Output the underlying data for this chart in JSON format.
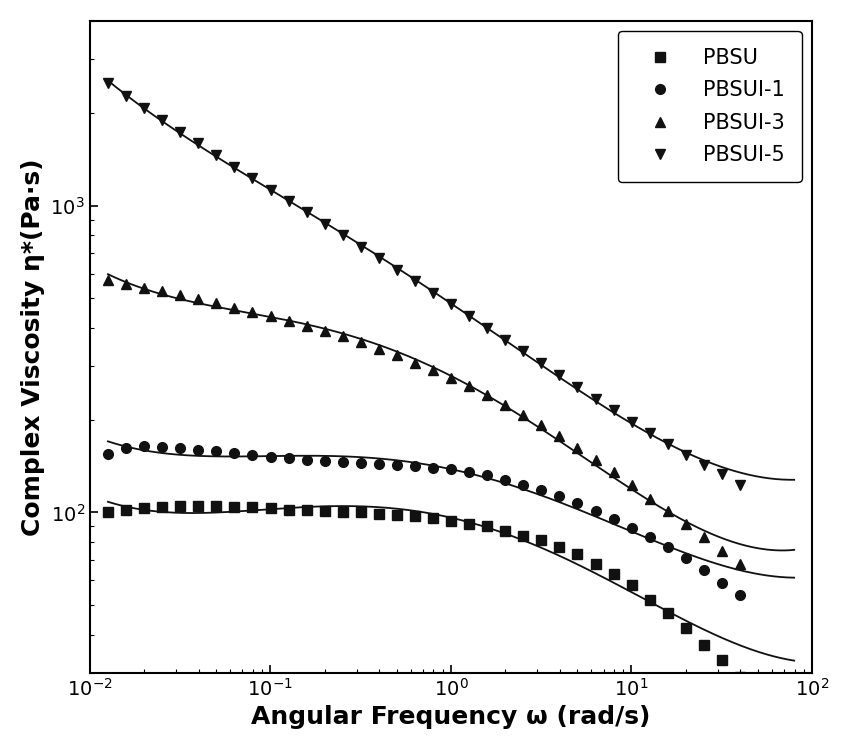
{
  "xlabel": "Angular Frequency ω (rad/s)",
  "ylabel": "Complex Viscosity η*(Pa·s)",
  "xlim": [
    0.01,
    100
  ],
  "ylim": [
    30,
    4000
  ],
  "line_color": "#555555",
  "marker_color": "#111111",
  "legend_labels": [
    "PBSU",
    "PBSUI-1",
    "PBSUI-3",
    "PBSUI-5"
  ],
  "markers": [
    "s",
    "o",
    "^",
    "v"
  ],
  "PBSU_x": [
    0.0126,
    0.0159,
    0.02,
    0.0252,
    0.0317,
    0.0399,
    0.0502,
    0.0632,
    0.0796,
    0.1002,
    0.1261,
    0.1588,
    0.1999,
    0.2517,
    0.3168,
    0.3989,
    0.5022,
    0.6324,
    0.7962,
    1.002,
    1.261,
    1.588,
    1.999,
    2.517,
    3.168,
    3.989,
    5.022,
    6.324,
    7.962,
    10.02,
    12.61,
    15.88,
    19.99,
    25.17,
    31.68,
    39.89,
    50.22,
    63.24,
    79.62
  ],
  "PBSU_y": [
    100,
    102,
    103,
    104,
    105,
    105,
    105,
    104,
    104,
    103,
    102,
    102,
    101,
    100,
    100,
    99,
    98,
    97,
    96,
    94,
    92,
    90,
    87,
    84,
    81,
    77,
    73,
    68,
    63,
    58,
    52,
    47,
    42,
    37,
    33,
    29,
    42,
    38,
    34
  ],
  "PBSUI1_x": [
    0.0126,
    0.0159,
    0.02,
    0.0252,
    0.0317,
    0.0399,
    0.0502,
    0.0632,
    0.0796,
    0.1002,
    0.1261,
    0.1588,
    0.1999,
    0.2517,
    0.3168,
    0.3989,
    0.5022,
    0.6324,
    0.7962,
    1.002,
    1.261,
    1.588,
    1.999,
    2.517,
    3.168,
    3.989,
    5.022,
    6.324,
    7.962,
    10.02,
    12.61,
    15.88,
    19.99,
    25.17,
    31.68,
    39.89,
    50.22,
    63.24,
    79.62
  ],
  "PBSUI1_y": [
    155,
    162,
    165,
    163,
    162,
    160,
    158,
    156,
    154,
    152,
    150,
    148,
    147,
    146,
    145,
    144,
    143,
    142,
    140,
    138,
    135,
    132,
    128,
    123,
    118,
    113,
    107,
    101,
    95,
    89,
    83,
    77,
    71,
    65,
    59,
    54,
    73,
    68,
    62
  ],
  "PBSUI3_x": [
    0.0126,
    0.0159,
    0.02,
    0.0252,
    0.0317,
    0.0399,
    0.0502,
    0.0632,
    0.0796,
    0.1002,
    0.1261,
    0.1588,
    0.1999,
    0.2517,
    0.3168,
    0.3989,
    0.5022,
    0.6324,
    0.7962,
    1.002,
    1.261,
    1.588,
    1.999,
    2.517,
    3.168,
    3.989,
    5.022,
    6.324,
    7.962,
    10.02,
    12.61,
    15.88,
    19.99,
    25.17,
    31.68,
    39.89,
    50.22,
    63.24,
    79.62
  ],
  "PBSUI3_y": [
    570,
    555,
    540,
    525,
    510,
    495,
    480,
    465,
    450,
    435,
    420,
    405,
    390,
    375,
    358,
    342,
    325,
    308,
    292,
    275,
    258,
    241,
    224,
    208,
    192,
    177,
    162,
    148,
    135,
    123,
    111,
    101,
    92,
    83,
    75,
    68,
    83,
    75,
    82
  ],
  "PBSUI5_x": [
    0.0126,
    0.0159,
    0.02,
    0.0252,
    0.0317,
    0.0399,
    0.0502,
    0.0632,
    0.0796,
    0.1002,
    0.1261,
    0.1588,
    0.1999,
    0.2517,
    0.3168,
    0.3989,
    0.5022,
    0.6324,
    0.7962,
    1.002,
    1.261,
    1.588,
    1.999,
    2.517,
    3.168,
    3.989,
    5.022,
    6.324,
    7.962,
    10.02,
    12.61,
    15.88,
    19.99,
    25.17,
    31.68,
    39.89,
    50.22,
    63.24,
    79.62
  ],
  "PBSUI5_y": [
    2500,
    2280,
    2080,
    1900,
    1740,
    1595,
    1460,
    1340,
    1230,
    1128,
    1035,
    950,
    872,
    800,
    735,
    675,
    618,
    567,
    520,
    477,
    437,
    400,
    366,
    335,
    307,
    281,
    257,
    235,
    215,
    197,
    181,
    167,
    154,
    143,
    133,
    123,
    145,
    135,
    125
  ],
  "markersize": 7,
  "linewidth": 1.3,
  "xlabel_fontsize": 18,
  "ylabel_fontsize": 18,
  "tick_fontsize": 14,
  "legend_fontsize": 15,
  "figure_facecolor": "#ffffff",
  "axes_facecolor": "#ffffff"
}
